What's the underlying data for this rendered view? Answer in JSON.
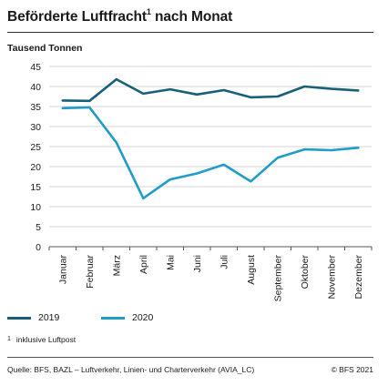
{
  "header": {
    "title": "Beförderte Luftfracht",
    "title_note": "1",
    "title_suffix": " nach Monat"
  },
  "legend": {
    "items": [
      {
        "label": "2019",
        "color": "#16607a"
      },
      {
        "label": "2020",
        "color": "#1f9cc7"
      }
    ]
  },
  "footnote": {
    "mark": "1",
    "text": "inklusive Luftpost"
  },
  "footer": {
    "source": "Quelle: BFS, BAZL – Luftverkehr, Linien- und Charterverkehr (AVIA_LC)",
    "copyright": "© BFS 2021"
  },
  "chart_data": {
    "type": "line",
    "ylabel": "Tausend Tonnen",
    "ylim": [
      0,
      45
    ],
    "yticks": [
      0,
      5,
      10,
      15,
      20,
      25,
      30,
      35,
      40,
      45
    ],
    "categories": [
      "Januar",
      "Februar",
      "März",
      "April",
      "Mai",
      "Juni",
      "Juli",
      "August",
      "September",
      "Oktober",
      "November",
      "Dezember"
    ],
    "grid": "horizontal",
    "legend_position": "bottom-left",
    "series": [
      {
        "name": "2019",
        "color": "#16607a",
        "values": [
          36.5,
          36.4,
          41.8,
          38.2,
          39.3,
          38.0,
          39.1,
          37.3,
          37.5,
          40.0,
          39.4,
          39.0
        ]
      },
      {
        "name": "2020",
        "color": "#1f9cc7",
        "values": [
          34.6,
          34.8,
          26.0,
          12.1,
          16.8,
          18.3,
          20.5,
          16.3,
          22.2,
          24.3,
          24.1,
          24.7
        ]
      }
    ]
  }
}
